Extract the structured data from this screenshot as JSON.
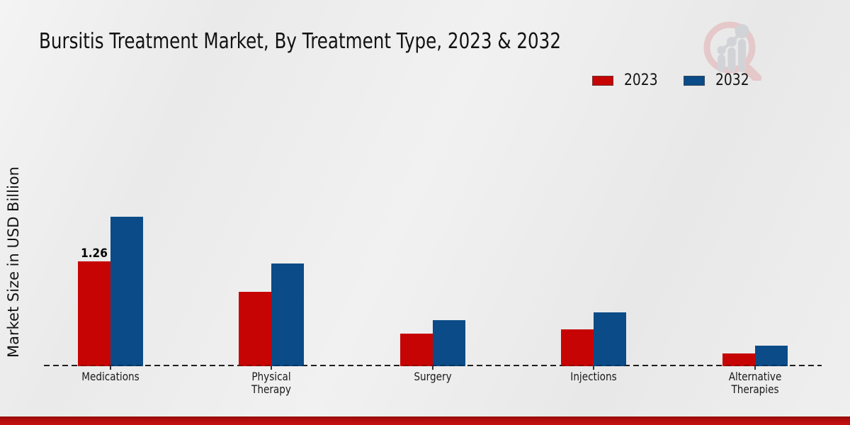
{
  "header": {
    "title": "Bursitis Treatment Market, By Treatment Type, 2023 & 2032"
  },
  "y_axis": {
    "label": "Market Size in USD Billion"
  },
  "legend": {
    "position": "top-right",
    "items": [
      {
        "label": "2023",
        "color": "#c70404"
      },
      {
        "label": "2032",
        "color": "#0b4b87"
      }
    ]
  },
  "chart_data": {
    "type": "bar",
    "title": "Bursitis Treatment Market, By Treatment Type, 2023 & 2032",
    "categories": [
      "Medications",
      "Physical Therapy",
      "Surgery",
      "Injections",
      "Alternative Therapies"
    ],
    "series": [
      {
        "name": "2023",
        "color": "#c70404",
        "values": [
          1.26,
          0.89,
          0.38,
          0.43,
          0.14
        ],
        "data_labels": [
          "1.26",
          "",
          "",
          "",
          ""
        ]
      },
      {
        "name": "2032",
        "color": "#0b4b87",
        "values": [
          1.8,
          1.23,
          0.54,
          0.64,
          0.23
        ],
        "data_labels": [
          "",
          "",
          "",
          "",
          ""
        ]
      }
    ],
    "xlabel": "",
    "ylabel": "Market Size in USD Billion",
    "ylim": [
      0,
      2.0
    ],
    "grid": false,
    "baseline_style": "dashed",
    "legend_position": "top-right"
  },
  "watermark": {
    "icon": "magnifier-bar-chart-logo",
    "ring_color": "#e5c8ca",
    "bars_color": "#d2d3d7"
  },
  "footer": {
    "accent_color": "#b30c0c"
  }
}
